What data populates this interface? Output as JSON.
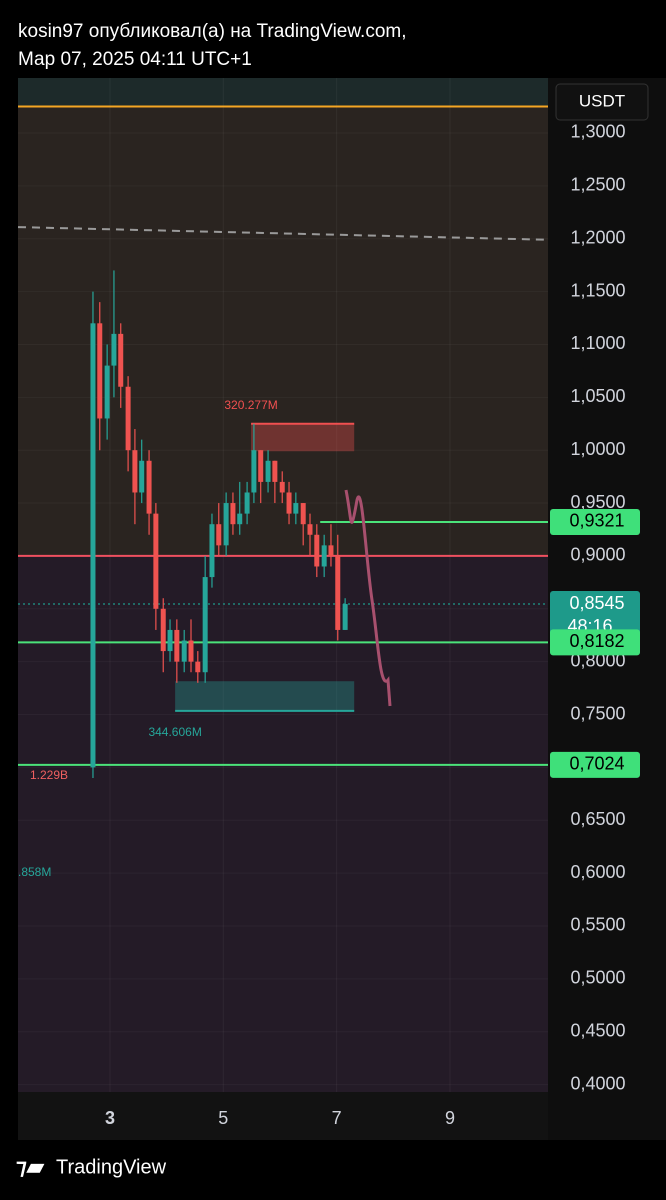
{
  "header": {
    "line1": "kosin97 опубликовал(а) на TradingView.com,",
    "line2": "Мар 07, 2025 04:11 UTC+1"
  },
  "footer": {
    "brand": "TradingView"
  },
  "chart_data": {
    "type": "candlestick",
    "currency": "USDT",
    "x": [
      2.7,
      2.82,
      2.95,
      3.07,
      3.19,
      3.32,
      3.44,
      3.56,
      3.69,
      3.81,
      3.94,
      4.06,
      4.18,
      4.31,
      4.43,
      4.55,
      4.68,
      4.8,
      4.92,
      5.05,
      5.17,
      5.29,
      5.42,
      5.54,
      5.66,
      5.79,
      5.91,
      6.04,
      6.16,
      6.28,
      6.41,
      6.53,
      6.65,
      6.78,
      6.9,
      7.02,
      7.15
    ],
    "open": [
      0.7,
      1.12,
      1.03,
      1.08,
      1.11,
      1.06,
      1.0,
      0.96,
      0.99,
      0.94,
      0.85,
      0.81,
      0.83,
      0.8,
      0.82,
      0.8,
      0.79,
      0.88,
      0.93,
      0.91,
      0.95,
      0.93,
      0.94,
      0.96,
      1.0,
      0.97,
      0.99,
      0.97,
      0.96,
      0.94,
      0.95,
      0.93,
      0.92,
      0.89,
      0.91,
      0.9,
      0.83
    ],
    "high": [
      1.15,
      1.14,
      1.1,
      1.17,
      1.12,
      1.07,
      1.02,
      1.01,
      1.0,
      0.95,
      0.86,
      0.84,
      0.84,
      0.83,
      0.84,
      0.81,
      0.9,
      0.94,
      0.95,
      0.96,
      0.96,
      0.97,
      0.97,
      1.025,
      1.0,
      1.0,
      0.99,
      0.98,
      0.97,
      0.96,
      0.95,
      0.94,
      0.93,
      0.92,
      0.93,
      0.92,
      0.86
    ],
    "low": [
      0.69,
      1.0,
      1.01,
      1.05,
      1.04,
      0.98,
      0.93,
      0.95,
      0.92,
      0.83,
      0.79,
      0.8,
      0.78,
      0.79,
      0.79,
      0.78,
      0.78,
      0.87,
      0.9,
      0.9,
      0.92,
      0.92,
      0.93,
      0.95,
      0.95,
      0.96,
      0.95,
      0.95,
      0.93,
      0.93,
      0.91,
      0.9,
      0.88,
      0.88,
      0.89,
      0.82,
      0.83
    ],
    "close": [
      1.12,
      1.03,
      1.08,
      1.11,
      1.06,
      1.0,
      0.96,
      0.99,
      0.94,
      0.85,
      0.81,
      0.83,
      0.8,
      0.82,
      0.8,
      0.79,
      0.88,
      0.93,
      0.91,
      0.95,
      0.93,
      0.94,
      0.96,
      1.0,
      0.97,
      0.99,
      0.97,
      0.96,
      0.94,
      0.95,
      0.93,
      0.92,
      0.89,
      0.91,
      0.9,
      0.83,
      0.8545
    ],
    "up_color": "#26a69a",
    "down_color": "#ef5350",
    "xlim": [
      1.377,
      10.73
    ],
    "xticks": [
      3,
      5,
      7,
      9
    ],
    "ylim": [
      0.393,
      1.352
    ],
    "yticks": [
      {
        "value": 1.3,
        "label": "1,3000"
      },
      {
        "value": 1.25,
        "label": "1,2500"
      },
      {
        "value": 1.2,
        "label": "1,2000"
      },
      {
        "value": 1.15,
        "label": "1,1500"
      },
      {
        "value": 1.1,
        "label": "1,1000"
      },
      {
        "value": 1.05,
        "label": "1,0500"
      },
      {
        "value": 1.0,
        "label": "1,0000"
      },
      {
        "value": 0.95,
        "label": "0,9500"
      },
      {
        "value": 0.9,
        "label": "0,9000"
      },
      {
        "value": 0.85,
        "label": "0,8500"
      },
      {
        "value": 0.8,
        "label": "0,8000"
      },
      {
        "value": 0.75,
        "label": "0,7500"
      },
      {
        "value": 0.7,
        "label": "0,7000"
      },
      {
        "value": 0.65,
        "label": "0,6500"
      },
      {
        "value": 0.6,
        "label": "0,6000"
      },
      {
        "value": 0.55,
        "label": "0,5500"
      },
      {
        "value": 0.5,
        "label": "0,5000"
      },
      {
        "value": 0.45,
        "label": "0,4500"
      },
      {
        "value": 0.4,
        "label": "0,4000"
      }
    ],
    "levels": [
      {
        "value": 1.325,
        "color": "#f5a623"
      },
      {
        "value": 0.9,
        "color": "#f05060"
      },
      {
        "value": 0.8182,
        "color": "#4be37a"
      },
      {
        "value": 0.7024,
        "color": "#4be37a"
      },
      {
        "value": 0.9321,
        "color": "#4be37a",
        "x_from": 6.71
      }
    ],
    "trend_line": {
      "x": [
        1.377,
        10.73
      ],
      "y": [
        1.211,
        1.199
      ]
    },
    "boxes": [
      {
        "x": [
          5.49,
          7.31
        ],
        "y": [
          0.999,
          1.025
        ],
        "color": "#f05050",
        "label": "320.277M"
      },
      {
        "x": [
          4.15,
          7.31
        ],
        "y": [
          0.7535,
          0.7815
        ],
        "color": "#26a69a",
        "label": "344.606M"
      }
    ],
    "annotations": [
      "1.229B",
      ".858M"
    ],
    "price_tags": [
      {
        "value": 0.9321,
        "label": "0,9321",
        "color": "#3fe07a"
      },
      {
        "value": 0.8545,
        "label": "0,8545",
        "countdown": "48:16",
        "color": "#1e9a8a"
      },
      {
        "value": 0.8182,
        "label": "0,8182",
        "color": "#3fe07a"
      },
      {
        "value": 0.7024,
        "label": "0,7024",
        "color": "#3fe07a"
      }
    ]
  }
}
